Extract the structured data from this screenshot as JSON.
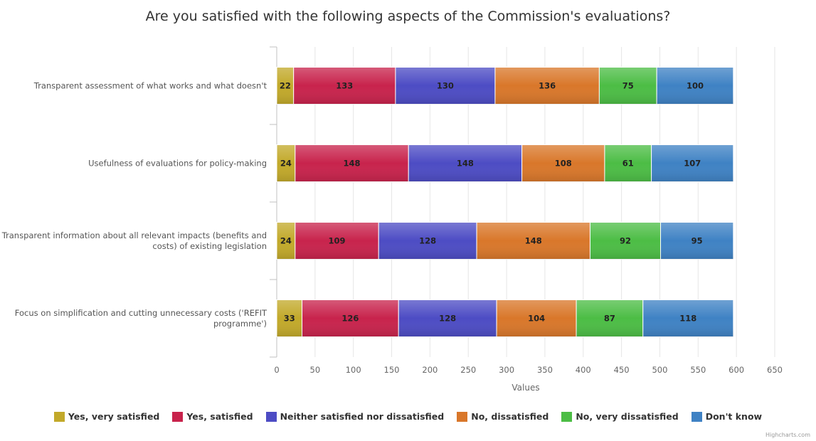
{
  "chart_data": {
    "type": "bar",
    "orientation": "horizontal",
    "stacked": true,
    "title": "Are you satisfied with the following aspects of the Commission's evaluations?",
    "categories": [
      [
        "Transparent assessment of what works and what doesn't"
      ],
      [
        "Usefulness of evaluations for policy-making"
      ],
      [
        "Transparent information about all relevant impacts (benefits and",
        "costs) of existing legislation"
      ],
      [
        "Focus on simplification and cutting unnecessary costs ('REFIT",
        "programme')"
      ]
    ],
    "series": [
      {
        "name": "Yes, very satisfied",
        "color": "#c2a92a",
        "values": [
          22,
          24,
          24,
          33
        ]
      },
      {
        "name": "Yes, satisfied",
        "color": "#c8234c",
        "values": [
          133,
          148,
          109,
          126
        ]
      },
      {
        "name": "Neither satisfied nor dissatisfied",
        "color": "#4d4cc4",
        "values": [
          130,
          148,
          128,
          128
        ]
      },
      {
        "name": "No, dissatisfied",
        "color": "#d9772a",
        "values": [
          136,
          108,
          148,
          104
        ]
      },
      {
        "name": "No, very dissatisfied",
        "color": "#4cbd45",
        "values": [
          75,
          61,
          92,
          87
        ]
      },
      {
        "name": "Don't know",
        "color": "#3f82c4",
        "values": [
          100,
          107,
          95,
          118
        ]
      }
    ],
    "xlabel": "Values",
    "xlim": [
      0,
      650
    ],
    "xticks": [
      "0",
      "50",
      "100",
      "150",
      "200",
      "250",
      "300",
      "350",
      "400",
      "450",
      "500",
      "550",
      "600",
      "650"
    ],
    "grid": true,
    "legend_position": "bottom"
  },
  "credits": "Highcharts.com"
}
